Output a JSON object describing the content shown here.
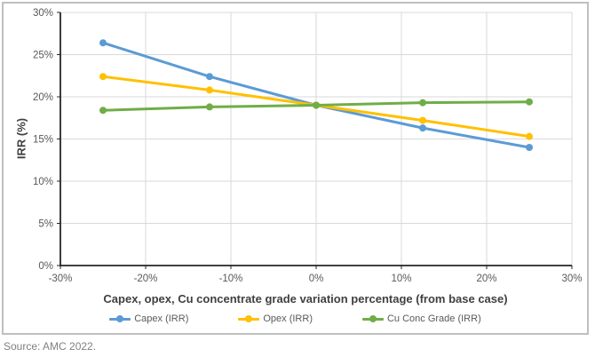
{
  "source": "Source: AMC 2022.",
  "chart_data": {
    "type": "line",
    "title": "",
    "xlabel": "Capex, opex, Cu concentrate grade variation percentage (from base case)",
    "ylabel": "IRR (%)",
    "xlim": [
      -30,
      30
    ],
    "ylim": [
      0,
      30
    ],
    "grid": true,
    "legend_position": "bottom",
    "x": [
      -25,
      -12.5,
      0,
      12.5,
      25
    ],
    "series": [
      {
        "name": "Capex (IRR)",
        "color": "#5B9BD5",
        "values": [
          26.4,
          22.4,
          19.0,
          16.3,
          14.0
        ]
      },
      {
        "name": "Opex (IRR)",
        "color": "#FFC000",
        "values": [
          22.4,
          20.8,
          19.0,
          17.2,
          15.3
        ]
      },
      {
        "name": "Cu Conc Grade (IRR)",
        "color": "#70AD47",
        "values": [
          18.4,
          18.8,
          19.0,
          19.3,
          19.4
        ]
      }
    ],
    "xticks": {
      "values": [
        -30,
        -20,
        -10,
        0,
        10,
        20,
        30
      ],
      "labels": [
        "-30%",
        "-20%",
        "-10%",
        "0%",
        "10%",
        "20%",
        "30%"
      ]
    },
    "yticks": {
      "values": [
        0,
        5,
        10,
        15,
        20,
        25,
        30
      ],
      "labels": [
        "0%",
        "5%",
        "10%",
        "15%",
        "20%",
        "25%",
        "30%"
      ]
    },
    "colors": {
      "axis": "#262626",
      "grid": "#D9D9D9",
      "plot_border": "#D9D9D9",
      "tick_labels": "#595959",
      "axis_titles": "#404040",
      "frame_border": "#BFBFBF",
      "source_text": "#808080",
      "background": "#FFFFFF"
    }
  }
}
